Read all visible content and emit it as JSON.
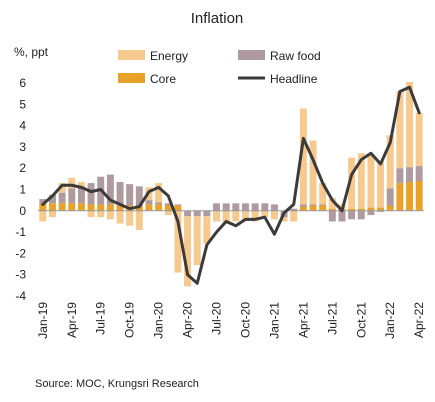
{
  "chart_data": {
    "type": "bar",
    "title": "Inflation",
    "ylabel": "%, ppt",
    "source": "Source:  MOC, Krungsri Research",
    "ylim": [
      -4,
      6
    ],
    "yticks": [
      "-4",
      "-3",
      "-2",
      "-1",
      "0",
      "1",
      "2",
      "3",
      "4",
      "5",
      "6"
    ],
    "categories": [
      "Jan-19",
      "Feb-19",
      "Mar-19",
      "Apr-19",
      "May-19",
      "Jun-19",
      "Jul-19",
      "Aug-19",
      "Sep-19",
      "Oct-19",
      "Nov-19",
      "Dec-19",
      "Jan-20",
      "Feb-20",
      "Mar-20",
      "Apr-20",
      "May-20",
      "Jun-20",
      "Jul-20",
      "Aug-20",
      "Sep-20",
      "Oct-20",
      "Nov-20",
      "Dec-20",
      "Jan-21",
      "Feb-21",
      "Mar-21",
      "Apr-21",
      "May-21",
      "Jun-21",
      "Jul-21",
      "Aug-21",
      "Sep-21",
      "Oct-21",
      "Nov-21",
      "Dec-21",
      "Jan-22",
      "Feb-22",
      "Mar-22",
      "Apr-22"
    ],
    "xtick_labels": [
      "Jan-19",
      "Apr-19",
      "Jul-19",
      "Oct-19",
      "Jan-20",
      "Apr-20",
      "Jul-20",
      "Oct-20",
      "Jan-21",
      "Apr-21",
      "Jul-21",
      "Oct-21",
      "Jan-22",
      "Apr-22"
    ],
    "legend": [
      {
        "name": "Energy",
        "kind": "bar"
      },
      {
        "name": "Raw food",
        "kind": "bar"
      },
      {
        "name": "Core",
        "kind": "bar"
      },
      {
        "name": "Headline",
        "kind": "line"
      }
    ],
    "series": [
      {
        "name": "Core",
        "kind": "bar",
        "color": "#e8a229",
        "values": [
          0.35,
          0.35,
          0.35,
          0.35,
          0.35,
          0.3,
          0.3,
          0.3,
          0.25,
          0.25,
          0.25,
          0.3,
          0.3,
          0.25,
          0.25,
          0.0,
          0.0,
          0.0,
          0.0,
          0.0,
          0.0,
          0.0,
          0.0,
          0.0,
          0.0,
          0.0,
          0.0,
          0.2,
          0.25,
          0.25,
          0.1,
          0.1,
          0.1,
          0.1,
          0.15,
          0.15,
          0.25,
          1.3,
          1.35,
          1.4
        ]
      },
      {
        "name": "Raw food",
        "kind": "bar",
        "color": "#ae9a9f",
        "values": [
          0.2,
          0.4,
          0.5,
          0.7,
          0.8,
          1.0,
          1.3,
          1.4,
          1.1,
          1.0,
          0.9,
          0.2,
          0.1,
          0.1,
          0.05,
          -0.25,
          -0.25,
          -0.25,
          0.35,
          0.35,
          0.35,
          0.35,
          0.35,
          0.35,
          0.3,
          -0.3,
          0.1,
          0.1,
          0.05,
          0.05,
          -0.5,
          -0.5,
          -0.4,
          -0.4,
          -0.2,
          -0.05,
          0.8,
          0.7,
          0.7,
          0.7
        ]
      },
      {
        "name": "Energy",
        "kind": "bar",
        "color": "#f6c98f",
        "values": [
          -0.5,
          -0.3,
          0.45,
          0.5,
          0.2,
          -0.3,
          -0.3,
          -0.4,
          -0.6,
          -0.7,
          -0.9,
          0.6,
          0.9,
          -0.2,
          -2.9,
          -3.3,
          -2.3,
          -1.3,
          -0.5,
          -0.6,
          -0.5,
          -0.4,
          -0.5,
          -0.3,
          -0.4,
          -0.2,
          -0.5,
          4.5,
          3.0,
          1.0,
          0.5,
          0.2,
          2.4,
          2.6,
          2.5,
          2.2,
          2.5,
          3.6,
          4.0,
          2.5
        ]
      },
      {
        "name": "Headline",
        "kind": "line",
        "color": "#3d3a3a",
        "values": [
          0.3,
          0.7,
          1.2,
          1.2,
          1.1,
          0.9,
          1.0,
          0.5,
          0.3,
          0.1,
          0.2,
          0.9,
          1.1,
          0.7,
          -0.5,
          -3.0,
          -3.4,
          -1.6,
          -1.0,
          -0.5,
          -0.7,
          -0.4,
          -0.4,
          -0.3,
          -1.1,
          -0.1,
          0.3,
          3.4,
          2.4,
          1.3,
          0.5,
          0.0,
          1.7,
          2.4,
          2.7,
          2.2,
          3.2,
          5.6,
          5.8,
          4.6
        ]
      }
    ]
  }
}
